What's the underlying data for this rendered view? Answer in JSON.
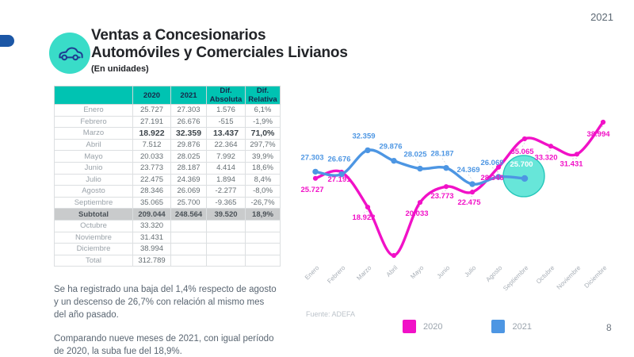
{
  "slide": {
    "year_label": "2021",
    "page_number": "8",
    "colors": {
      "accent_teal": "#00C3B2",
      "icon_teal": "#39DCC8",
      "pill_blue": "#1C57A6",
      "magenta": "#F111C7",
      "blue": "#4D96E3",
      "highlight_fill": "#45E0D1",
      "highlight_border": "#25C7BA"
    }
  },
  "header": {
    "title_line1": "Ventas a Concesionarios",
    "title_line2": "Automóviles y Comerciales Livianos",
    "subtitle": "(En unidades)"
  },
  "table": {
    "columns": [
      "",
      "2020",
      "2021",
      "Dif. Absoluta",
      "Dif. Relativa"
    ],
    "rows": [
      {
        "label": "Enero",
        "y2020": "25.727",
        "y2021": "27.303",
        "dif_abs": "1.576",
        "dif_rel": "6,1%",
        "emphasis": "none"
      },
      {
        "label": "Febrero",
        "y2020": "27.191",
        "y2021": "26.676",
        "dif_abs": "-515",
        "dif_rel": "-1,9%",
        "emphasis": "none"
      },
      {
        "label": "Marzo",
        "y2020": "18.922",
        "y2021": "32.359",
        "dif_abs": "13.437",
        "dif_rel": "71,0%",
        "emphasis": "strong"
      },
      {
        "label": "Abril",
        "y2020": "7.512",
        "y2021": "29.876",
        "dif_abs": "22.364",
        "dif_rel": "297,7%",
        "emphasis": "none"
      },
      {
        "label": "Mayo",
        "y2020": "20.033",
        "y2021": "28.025",
        "dif_abs": "7.992",
        "dif_rel": "39,9%",
        "emphasis": "none"
      },
      {
        "label": "Junio",
        "y2020": "23.773",
        "y2021": "28.187",
        "dif_abs": "4.414",
        "dif_rel": "18,6%",
        "emphasis": "none"
      },
      {
        "label": "Julio",
        "y2020": "22.475",
        "y2021": "24.369",
        "dif_abs": "1.894",
        "dif_rel": "8,4%",
        "emphasis": "none"
      },
      {
        "label": "Agosto",
        "y2020": "28.346",
        "y2021": "26.069",
        "dif_abs": "-2.277",
        "dif_rel": "-8,0%",
        "emphasis": "none"
      },
      {
        "label": "Septiembre",
        "y2020": "35.065",
        "y2021": "25.700",
        "dif_abs": "-9.365",
        "dif_rel": "-26,7%",
        "emphasis": "none"
      },
      {
        "label": "Subtotal",
        "y2020": "209.044",
        "y2021": "248.564",
        "dif_abs": "39.520",
        "dif_rel": "18,9%",
        "emphasis": "subtotal"
      },
      {
        "label": "Octubre",
        "y2020": "33.320",
        "y2021": "",
        "dif_abs": "",
        "dif_rel": "",
        "emphasis": "none"
      },
      {
        "label": "Noviembre",
        "y2020": "31.431",
        "y2021": "",
        "dif_abs": "",
        "dif_rel": "",
        "emphasis": "none"
      },
      {
        "label": "Diciembre",
        "y2020": "38.994",
        "y2021": "",
        "dif_abs": "",
        "dif_rel": "",
        "emphasis": "none"
      },
      {
        "label": "Total",
        "y2020": "312.789",
        "y2021": "",
        "dif_abs": "",
        "dif_rel": "",
        "emphasis": "none"
      }
    ]
  },
  "notes": {
    "paragraph1": "Se ha registrado una baja del 1,4% respecto de agosto y un descenso de 26,7% con relación al mismo mes del año pasado.",
    "paragraph2": "Comparando nueve meses de 2021, con igual período de 2020, la suba fue del 18,9%."
  },
  "chart_data": {
    "type": "line",
    "title": "",
    "categories": [
      "Enero",
      "Febrero",
      "Marzo",
      "Abril",
      "Mayo",
      "Junio",
      "Julio",
      "Agosto",
      "Septiembre",
      "Octubre",
      "Noviembre",
      "Diciembre"
    ],
    "series": [
      {
        "name": "2020",
        "color": "#F111C7",
        "values": [
          25727,
          27191,
          18922,
          7512,
          20033,
          23773,
          22475,
          28346,
          35065,
          33320,
          31431,
          38994
        ]
      },
      {
        "name": "2021",
        "color": "#4D96E3",
        "values": [
          27303,
          26676,
          32359,
          29876,
          28025,
          28187,
          24369,
          26069,
          25700,
          null,
          null,
          null
        ]
      }
    ],
    "highlight": {
      "series": "2021",
      "category": "Septiembre",
      "value": 25700,
      "label": "25.700"
    },
    "unlabeled_points": [
      {
        "series": "2020",
        "category": "Abril",
        "value": 7512
      }
    ],
    "ylim": [
      7000,
      40000
    ],
    "grid": false,
    "legend_position": "bottom",
    "source": "Fuente: ADEFA"
  }
}
